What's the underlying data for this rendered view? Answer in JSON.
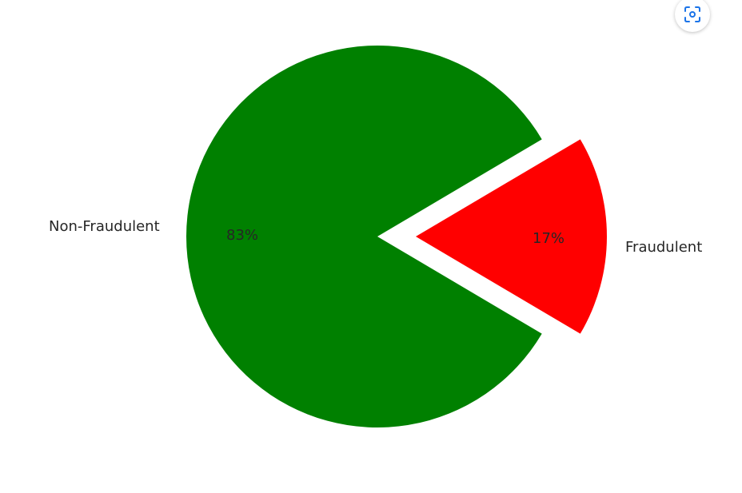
{
  "chart_data": {
    "type": "pie",
    "slices": [
      {
        "label": "Non-Fraudulent",
        "value": 83,
        "pct_label": "83%",
        "color": "#008000",
        "exploded": false
      },
      {
        "label": "Fraudulent",
        "value": 17,
        "pct_label": "17%",
        "color": "#ff0000",
        "exploded": true
      }
    ],
    "legend": false
  },
  "toolbar": {
    "lens_icon": "lens-scan-icon",
    "accent": "#1a73e8"
  }
}
